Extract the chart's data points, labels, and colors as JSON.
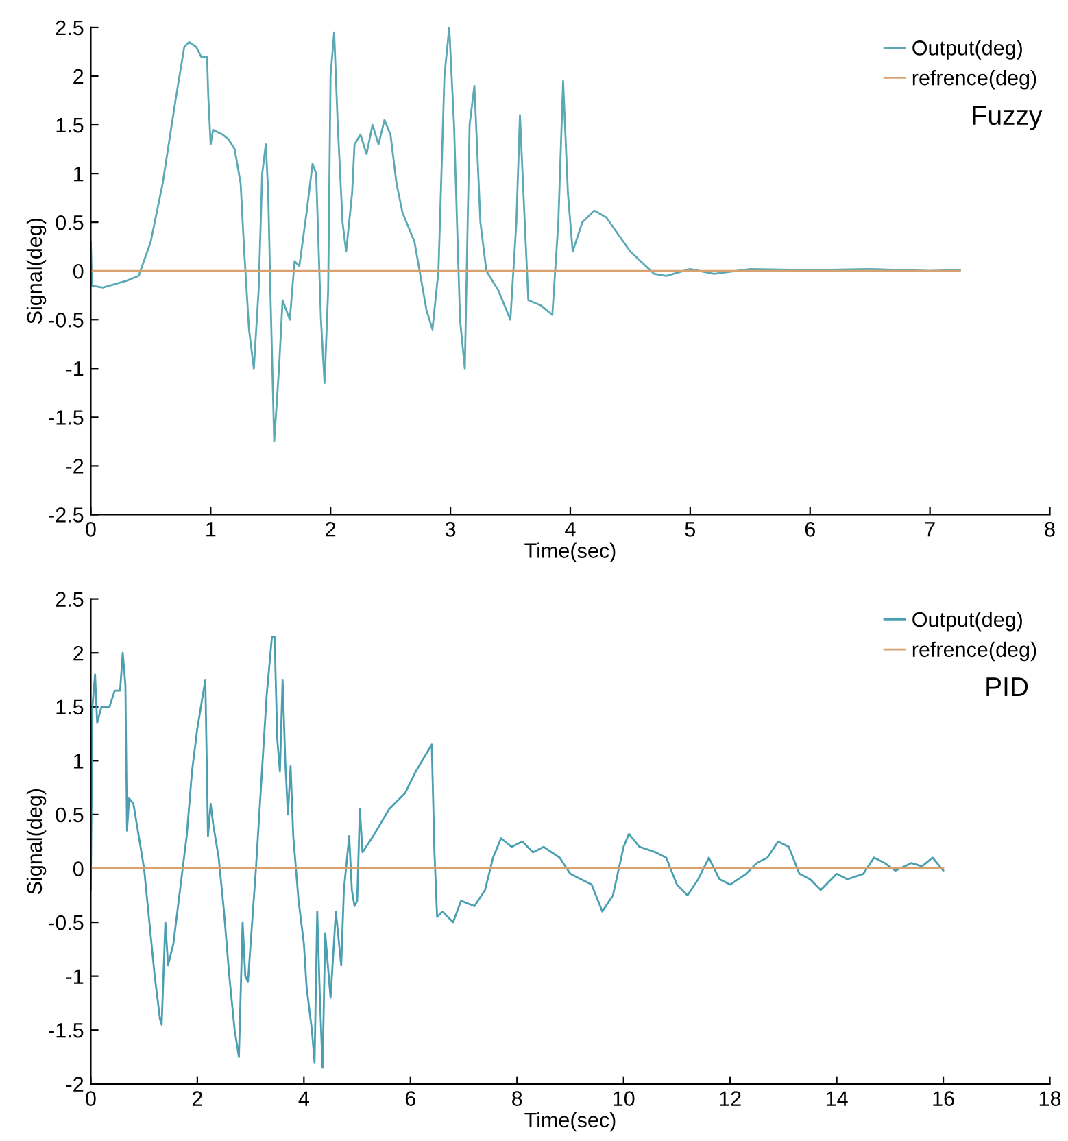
{
  "chart_data": [
    {
      "type": "line",
      "xlabel": "Time(sec)",
      "ylabel": "Signal(deg)",
      "xlim": [
        0,
        8
      ],
      "ylim": [
        -2.5,
        2.5
      ],
      "xticks": [
        0,
        1,
        2,
        3,
        4,
        5,
        6,
        7,
        8
      ],
      "yticks": [
        -2.5,
        -2,
        -1.5,
        -1,
        -0.5,
        0,
        0.5,
        1,
        1.5,
        2,
        2.5
      ],
      "legend": "top right",
      "grid": false,
      "annotations": [
        "Fuzzy"
      ],
      "series": [
        {
          "name": "Output(deg)",
          "color": "#5aa9b5",
          "x": [
            0,
            0.01,
            0.1,
            0.3,
            0.4,
            0.5,
            0.6,
            0.7,
            0.78,
            0.82,
            0.88,
            0.92,
            0.97,
            0.98,
            1.0,
            1.02,
            1.1,
            1.15,
            1.2,
            1.25,
            1.28,
            1.32,
            1.36,
            1.4,
            1.43,
            1.46,
            1.48,
            1.5,
            1.53,
            1.57,
            1.6,
            1.66,
            1.7,
            1.74,
            1.8,
            1.85,
            1.88,
            1.92,
            1.95,
            1.98,
            2.0,
            2.03,
            2.06,
            2.1,
            2.13,
            2.18,
            2.2,
            2.25,
            2.3,
            2.35,
            2.4,
            2.45,
            2.5,
            2.55,
            2.6,
            2.7,
            2.8,
            2.85,
            2.9,
            2.95,
            2.99,
            3.03,
            3.08,
            3.12,
            3.16,
            3.2,
            3.25,
            3.3,
            3.4,
            3.5,
            3.55,
            3.58,
            3.62,
            3.65,
            3.75,
            3.85,
            3.9,
            3.94,
            3.98,
            4.02,
            4.1,
            4.2,
            4.3,
            4.5,
            4.7,
            4.8,
            5.0,
            5.2,
            5.5,
            6.0,
            6.5,
            7.0,
            7.25
          ],
          "values": [
            0.3,
            -0.15,
            -0.17,
            -0.1,
            -0.05,
            0.3,
            0.9,
            1.7,
            2.3,
            2.35,
            2.3,
            2.2,
            2.2,
            1.8,
            1.3,
            1.45,
            1.4,
            1.35,
            1.25,
            0.9,
            0.2,
            -0.6,
            -1.0,
            -0.2,
            1.0,
            1.3,
            0.8,
            -0.3,
            -1.75,
            -1.0,
            -0.3,
            -0.5,
            0.1,
            0.05,
            0.6,
            1.1,
            1.0,
            -0.5,
            -1.15,
            -0.2,
            2.0,
            2.45,
            1.5,
            0.5,
            0.2,
            0.8,
            1.3,
            1.4,
            1.2,
            1.5,
            1.3,
            1.55,
            1.4,
            0.9,
            0.6,
            0.3,
            -0.4,
            -0.6,
            0,
            2.0,
            2.5,
            1.5,
            -0.5,
            -1.0,
            1.5,
            1.9,
            0.5,
            0.0,
            -0.2,
            -0.5,
            0.5,
            1.6,
            0.5,
            -0.3,
            -0.35,
            -0.45,
            0.5,
            1.95,
            0.8,
            0.2,
            0.5,
            0.62,
            0.55,
            0.2,
            -0.03,
            -0.05,
            0.02,
            -0.03,
            0.02,
            0.01,
            0.02,
            0.0,
            0.01
          ]
        },
        {
          "name": "refrence(deg)",
          "color": "#d9a070",
          "x": [
            0,
            7.25
          ],
          "values": [
            0,
            0
          ]
        }
      ]
    },
    {
      "type": "line",
      "xlabel": "Time(sec)",
      "ylabel": "Signal(deg)",
      "xlim": [
        0,
        18
      ],
      "ylim": [
        -2,
        2.5
      ],
      "xticks": [
        0,
        2,
        4,
        6,
        8,
        10,
        12,
        14,
        16,
        18
      ],
      "yticks": [
        -2,
        -1.5,
        -1,
        -0.5,
        0,
        0.5,
        1,
        1.5,
        2,
        2.5
      ],
      "legend": "top right",
      "grid": false,
      "annotations": [
        "PID"
      ],
      "series": [
        {
          "name": "Output(deg)",
          "color": "#4a9fb0",
          "x": [
            0,
            0.03,
            0.08,
            0.12,
            0.2,
            0.35,
            0.45,
            0.55,
            0.6,
            0.65,
            0.68,
            0.72,
            0.8,
            0.9,
            1.0,
            1.1,
            1.2,
            1.3,
            1.33,
            1.4,
            1.45,
            1.55,
            1.7,
            1.8,
            1.9,
            2.0,
            2.1,
            2.15,
            2.2,
            2.25,
            2.3,
            2.4,
            2.5,
            2.6,
            2.7,
            2.78,
            2.85,
            2.9,
            2.95,
            3.0,
            3.1,
            3.2,
            3.3,
            3.4,
            3.45,
            3.5,
            3.55,
            3.6,
            3.65,
            3.7,
            3.75,
            3.8,
            3.85,
            3.9,
            4.0,
            4.05,
            4.15,
            4.2,
            4.25,
            4.3,
            4.35,
            4.4,
            4.5,
            4.6,
            4.7,
            4.75,
            4.85,
            4.9,
            4.95,
            5.0,
            5.05,
            5.1,
            5.3,
            5.6,
            5.9,
            6.1,
            6.4,
            6.45,
            6.5,
            6.6,
            6.8,
            6.95,
            7.2,
            7.4,
            7.55,
            7.7,
            7.9,
            8.1,
            8.3,
            8.5,
            8.8,
            9.0,
            9.2,
            9.4,
            9.6,
            9.8,
            10.0,
            10.1,
            10.3,
            10.6,
            10.8,
            11.0,
            11.2,
            11.4,
            11.6,
            11.8,
            12.0,
            12.3,
            12.5,
            12.7,
            12.9,
            13.1,
            13.3,
            13.5,
            13.7,
            14.0,
            14.2,
            14.5,
            14.7,
            14.9,
            15.1,
            15.4,
            15.6,
            15.8,
            16.0
          ],
          "values": [
            -0.2,
            1.5,
            1.8,
            1.35,
            1.5,
            1.5,
            1.65,
            1.65,
            2.0,
            1.7,
            0.35,
            0.65,
            0.6,
            0.3,
            0.0,
            -0.5,
            -1.0,
            -1.4,
            -1.45,
            -0.5,
            -0.9,
            -0.7,
            -0.1,
            0.3,
            0.9,
            1.3,
            1.6,
            1.75,
            0.3,
            0.6,
            0.4,
            0.1,
            -0.4,
            -1.0,
            -1.5,
            -1.75,
            -0.5,
            -1.0,
            -1.05,
            -0.7,
            0.0,
            0.8,
            1.6,
            2.15,
            2.15,
            1.2,
            0.9,
            1.75,
            1.0,
            0.5,
            0.95,
            0.3,
            0.0,
            -0.3,
            -0.7,
            -1.1,
            -1.5,
            -1.8,
            -0.4,
            -1.2,
            -1.85,
            -0.6,
            -1.2,
            -0.4,
            -0.9,
            -0.2,
            0.3,
            -0.2,
            -0.35,
            -0.3,
            0.55,
            0.15,
            0.3,
            0.55,
            0.7,
            0.9,
            1.15,
            0.15,
            -0.45,
            -0.4,
            -0.5,
            -0.3,
            -0.35,
            -0.2,
            0.1,
            0.28,
            0.2,
            0.25,
            0.15,
            0.2,
            0.1,
            -0.05,
            -0.1,
            -0.15,
            -0.4,
            -0.25,
            0.2,
            0.32,
            0.2,
            0.15,
            0.1,
            -0.15,
            -0.25,
            -0.1,
            0.1,
            -0.1,
            -0.15,
            -0.05,
            0.05,
            0.1,
            0.25,
            0.2,
            -0.05,
            -0.1,
            -0.2,
            -0.05,
            -0.1,
            -0.05,
            0.1,
            0.05,
            -0.02,
            0.05,
            0.02,
            0.1,
            -0.02
          ]
        },
        {
          "name": "refrence(deg)",
          "color": "#d9a070",
          "x": [
            0,
            16
          ],
          "values": [
            0,
            0
          ]
        }
      ]
    }
  ]
}
